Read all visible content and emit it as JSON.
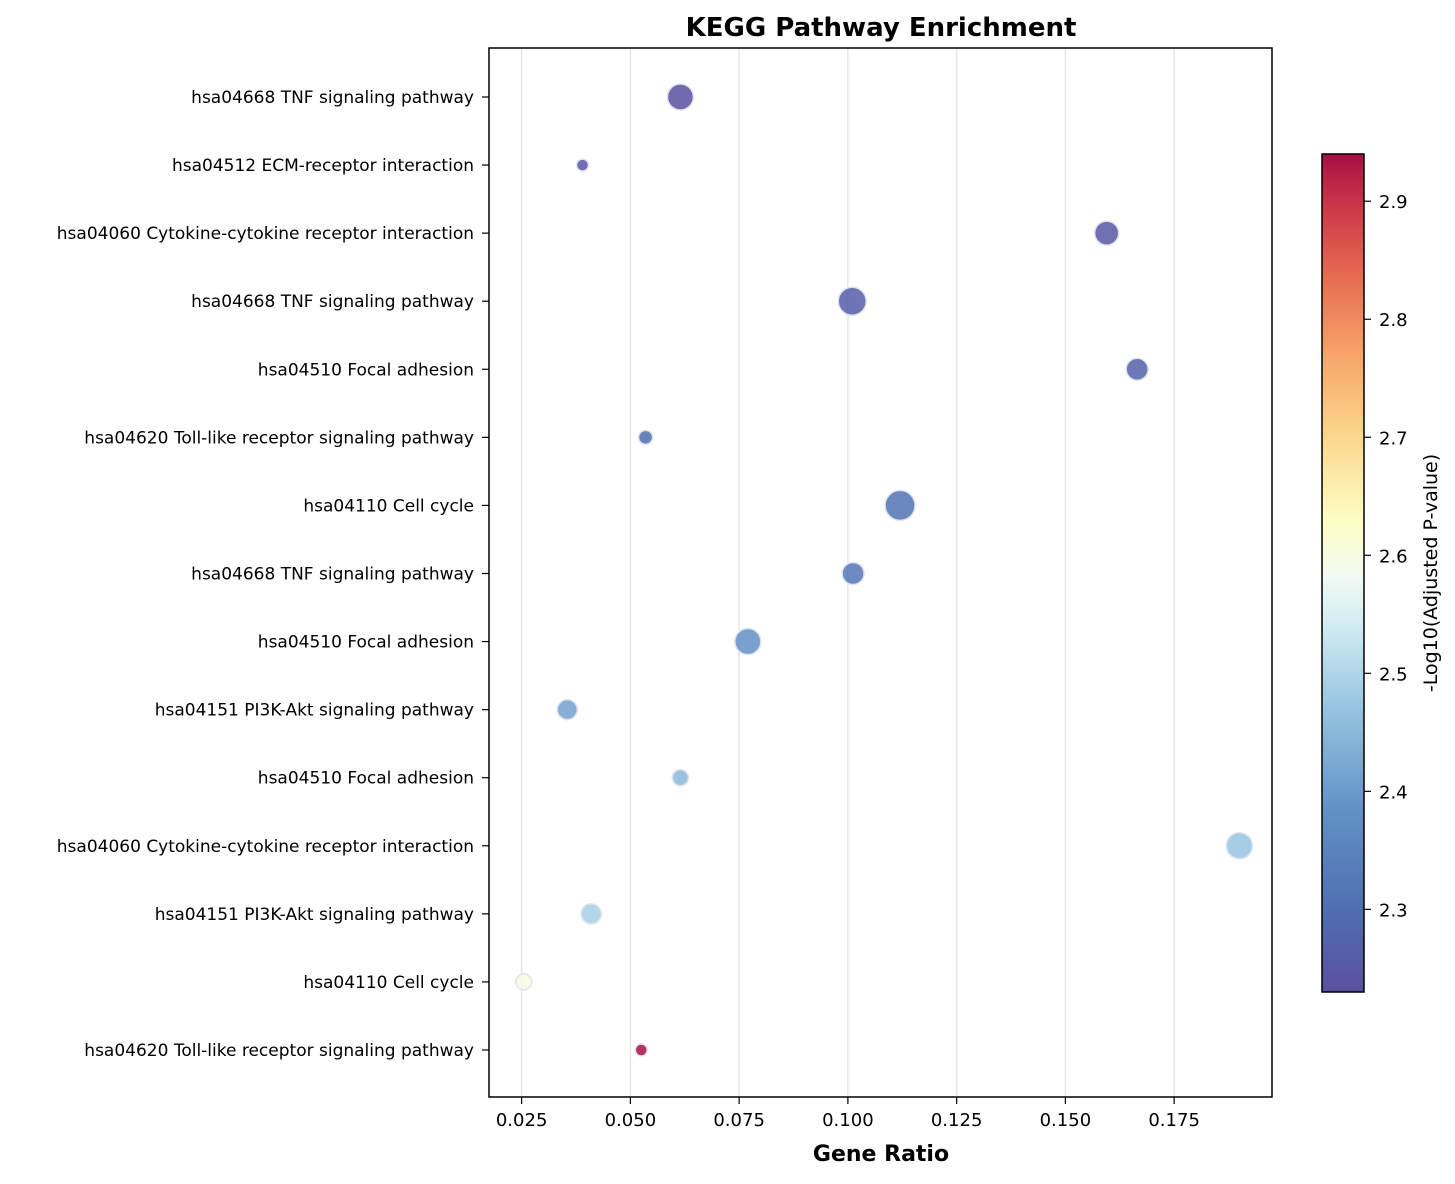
{
  "chart_data": {
    "type": "scatter",
    "title": "KEGG Pathway Enrichment",
    "xlabel": "Gene Ratio",
    "ylabel": "",
    "xlim": [
      0.0175,
      0.1975
    ],
    "x_ticks": [
      "0.025",
      "0.050",
      "0.075",
      "0.100",
      "0.125",
      "0.150",
      "0.175"
    ],
    "x_tick_values": [
      0.025,
      0.05,
      0.075,
      0.1,
      0.125,
      0.15,
      0.175
    ],
    "grid": "vertical",
    "categories": [
      "hsa04668 TNF signaling pathway",
      "hsa04512 ECM-receptor interaction",
      "hsa04060 Cytokine-cytokine receptor interaction",
      "hsa04668 TNF signaling pathway",
      "hsa04510 Focal adhesion",
      "hsa04620 Toll-like receptor signaling pathway",
      "hsa04110 Cell cycle",
      "hsa04668 TNF signaling pathway",
      "hsa04510 Focal adhesion",
      "hsa04151 PI3K-Akt signaling pathway",
      "hsa04510 Focal adhesion",
      "hsa04060 Cytokine-cytokine receptor interaction",
      "hsa04151 PI3K-Akt signaling pathway",
      "hsa04110 Cell cycle",
      "hsa04620 Toll-like receptor signaling pathway"
    ],
    "points": [
      {
        "x": 0.0615,
        "color_value": 2.23,
        "size": 13
      },
      {
        "x": 0.039,
        "color_value": 2.24,
        "size": 6
      },
      {
        "x": 0.1595,
        "color_value": 2.25,
        "size": 12
      },
      {
        "x": 0.101,
        "color_value": 2.26,
        "size": 14
      },
      {
        "x": 0.1665,
        "color_value": 2.27,
        "size": 11
      },
      {
        "x": 0.0535,
        "color_value": 2.3,
        "size": 7
      },
      {
        "x": 0.112,
        "color_value": 2.31,
        "size": 15
      },
      {
        "x": 0.1012,
        "color_value": 2.32,
        "size": 11
      },
      {
        "x": 0.077,
        "color_value": 2.38,
        "size": 13
      },
      {
        "x": 0.0355,
        "color_value": 2.41,
        "size": 10
      },
      {
        "x": 0.0615,
        "color_value": 2.45,
        "size": 8
      },
      {
        "x": 0.19,
        "color_value": 2.47,
        "size": 13
      },
      {
        "x": 0.041,
        "color_value": 2.49,
        "size": 10
      },
      {
        "x": 0.0255,
        "color_value": 2.6,
        "size": 8
      },
      {
        "x": 0.0525,
        "color_value": 2.94,
        "size": 6
      }
    ],
    "colorbar": {
      "label": "-Log10(Adjusted P-value)",
      "range": [
        2.23,
        2.94
      ],
      "ticks": [
        "2.3",
        "2.4",
        "2.5",
        "2.6",
        "2.7",
        "2.8",
        "2.9"
      ],
      "tick_values": [
        2.3,
        2.4,
        2.5,
        2.6,
        2.7,
        2.8,
        2.9
      ],
      "colormap": [
        "#5e4fa2",
        "#3288bd",
        "#66c2a5",
        "#abdda4",
        "#e6f598",
        "#ffffbf",
        "#fee08b",
        "#fdae61",
        "#f46d43",
        "#d53e4f",
        "#9e0142"
      ],
      "colormap_name": "RdYlBu_r"
    }
  }
}
